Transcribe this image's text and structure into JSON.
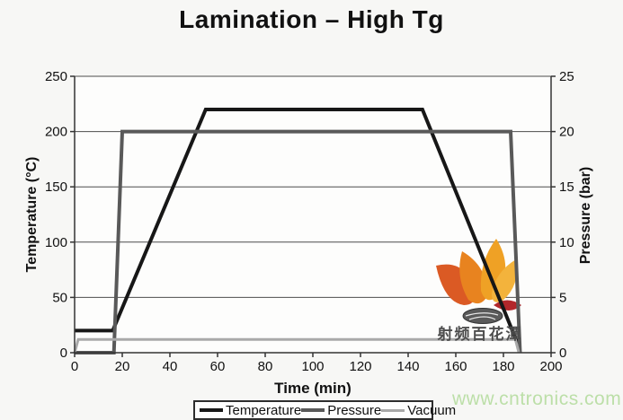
{
  "page": {
    "title": "Lamination – High Tg",
    "watermark_cn": "射频百花潭",
    "watermark_url": "www.cntronics.com"
  },
  "chart_data": {
    "type": "line",
    "title": "Lamination – High Tg",
    "xlabel": "Time (min)",
    "ylabel_left": "Temperature (°C)",
    "ylabel_right": "Pressure (bar)",
    "xlim": [
      0,
      200
    ],
    "ylim_left": [
      0,
      250
    ],
    "ylim_right": [
      0,
      25
    ],
    "x_ticks": [
      0,
      20,
      40,
      60,
      80,
      100,
      120,
      140,
      160,
      180,
      200
    ],
    "y_left_ticks": [
      0,
      50,
      100,
      150,
      200,
      250
    ],
    "y_right_ticks": [
      0,
      5,
      10,
      15,
      20,
      25
    ],
    "grid": "horizontal",
    "legend_position": "bottom",
    "series": [
      {
        "name": "Temperature",
        "axis": "left",
        "unit": "°C",
        "color": "#171717",
        "width": 4,
        "points": [
          [
            0,
            20
          ],
          [
            16,
            20
          ],
          [
            55,
            220
          ],
          [
            146,
            220
          ],
          [
            186,
            8
          ]
        ]
      },
      {
        "name": "Pressure",
        "axis": "right",
        "unit": "bar",
        "color": "#595959",
        "width": 4,
        "points": [
          [
            0,
            0
          ],
          [
            16.5,
            0
          ],
          [
            20,
            20
          ],
          [
            183,
            20
          ],
          [
            187,
            0
          ]
        ]
      },
      {
        "name": "Vacuum",
        "axis": "right",
        "unit": "bar",
        "color": "#a9a9a9",
        "width": 3,
        "points": [
          [
            0,
            0
          ],
          [
            1.5,
            1.2
          ],
          [
            185,
            1.2
          ],
          [
            186.5,
            0
          ]
        ]
      }
    ],
    "colors": {
      "grid": "#4d4d4d",
      "axis": "#333333",
      "tick_text": "#111111",
      "plot_bg": "#fdfdfc"
    }
  }
}
